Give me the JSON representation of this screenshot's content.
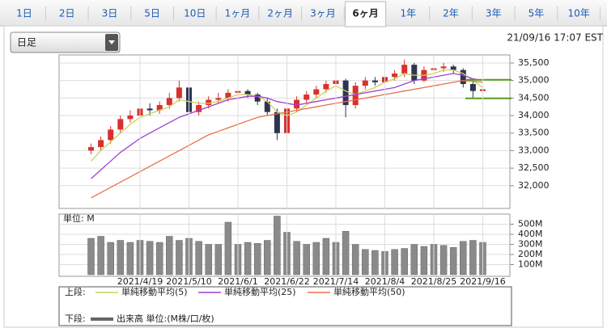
{
  "tabs": [
    "1日",
    "2日",
    "3日",
    "5日",
    "10日",
    "1ヶ月",
    "2ヶ月",
    "3ヶ月",
    "6ヶ月",
    "1年",
    "2年",
    "3年",
    "5年",
    "10年"
  ],
  "active_tab": 8,
  "period_select": "日足",
  "timestamp": "21/09/16 17:07 EST",
  "chart_data": [
    {
      "type": "candlestick",
      "legend_label": "上段:",
      "up_color": "#d8312c",
      "down_color": "#2e3550",
      "ohlc": [
        [
          33000,
          33200,
          32900,
          33100
        ],
        [
          33100,
          33400,
          33000,
          33300
        ],
        [
          33300,
          33700,
          33200,
          33600
        ],
        [
          33600,
          34000,
          33500,
          33900
        ],
        [
          33900,
          34150,
          33800,
          34000
        ],
        [
          34000,
          34300,
          33900,
          34200
        ],
        [
          34200,
          34350,
          34000,
          34150
        ],
        [
          34150,
          34400,
          34050,
          34300
        ],
        [
          34300,
          34650,
          34200,
          34500
        ],
        [
          34500,
          35000,
          34400,
          34800
        ],
        [
          34800,
          34900,
          33950,
          34100
        ],
        [
          34100,
          34400,
          34000,
          34300
        ],
        [
          34300,
          34550,
          34200,
          34450
        ],
        [
          34450,
          34650,
          34350,
          34500
        ],
        [
          34500,
          34750,
          34400,
          34650
        ],
        [
          34650,
          34800,
          34550,
          34700
        ],
        [
          34700,
          34750,
          34500,
          34600
        ],
        [
          34600,
          34650,
          34300,
          34400
        ],
        [
          34400,
          34500,
          34000,
          34100
        ],
        [
          34100,
          34200,
          33300,
          33500
        ],
        [
          33500,
          34300,
          33450,
          34200
        ],
        [
          34200,
          34550,
          34100,
          34450
        ],
        [
          34450,
          34700,
          34350,
          34600
        ],
        [
          34600,
          34850,
          34500,
          34750
        ],
        [
          34750,
          35000,
          34650,
          34900
        ],
        [
          34900,
          35100,
          34800,
          35000
        ],
        [
          35000,
          35050,
          33950,
          34300
        ],
        [
          34300,
          34950,
          34200,
          34850
        ],
        [
          34850,
          35100,
          34750,
          35000
        ],
        [
          35000,
          35100,
          34850,
          34950
        ],
        [
          34950,
          35200,
          34850,
          35100
        ],
        [
          35100,
          35300,
          35000,
          35200
        ],
        [
          35200,
          35600,
          35100,
          35450
        ],
        [
          35450,
          35500,
          34900,
          35000
        ],
        [
          35000,
          35400,
          34950,
          35300
        ],
        [
          35300,
          35450,
          35200,
          35350
        ],
        [
          35350,
          35500,
          35250,
          35400
        ],
        [
          35400,
          35450,
          35200,
          35300
        ],
        [
          35300,
          35350,
          34800,
          34900
        ],
        [
          34900,
          35000,
          34500,
          34700
        ],
        [
          34700,
          34900,
          34550,
          34750
        ]
      ],
      "series": [
        {
          "name": "単純移動平均(5)",
          "color": "#c9d35a",
          "values": [
            32700,
            33000,
            33250,
            33500,
            33750,
            33950,
            34050,
            34150,
            34250,
            34450,
            34400,
            34350,
            34350,
            34400,
            34500,
            34600,
            34600,
            34550,
            34400,
            34100,
            34000,
            34100,
            34300,
            34500,
            34700,
            34850,
            34700,
            34600,
            34700,
            34800,
            34950,
            35050,
            35200,
            35150,
            35150,
            35200,
            35300,
            35300,
            35200,
            35000,
            34800
          ]
        },
        {
          "name": "単純移動平均(25)",
          "color": "#a040d0",
          "values": [
            32200,
            32450,
            32700,
            32950,
            33150,
            33350,
            33500,
            33650,
            33800,
            33950,
            34050,
            34150,
            34250,
            34350,
            34450,
            34500,
            34550,
            34550,
            34500,
            34400,
            34350,
            34300,
            34350,
            34400,
            34450,
            34500,
            34550,
            34600,
            34650,
            34700,
            34750,
            34800,
            34900,
            35000,
            35050,
            35100,
            35150,
            35200,
            35150,
            35050,
            35000
          ]
        },
        {
          "name": "単純移動平均(50)",
          "color": "#e8704a",
          "values": [
            31650,
            31800,
            31950,
            32100,
            32250,
            32400,
            32550,
            32700,
            32850,
            33000,
            33150,
            33300,
            33450,
            33550,
            33650,
            33750,
            33850,
            33950,
            34000,
            34050,
            34100,
            34150,
            34200,
            34250,
            34300,
            34350,
            34400,
            34450,
            34500,
            34550,
            34600,
            34650,
            34700,
            34750,
            34800,
            34850,
            34900,
            34950,
            35000,
            34980,
            34950
          ]
        }
      ],
      "reference_lines": {
        "color": "#5a9a1e",
        "values": [
          35020,
          34490
        ]
      },
      "ylim": [
        31350,
        35730
      ],
      "yticks": [
        {
          "value": 32000,
          "label": "32,000"
        },
        {
          "value": 32500,
          "label": "32,500"
        },
        {
          "value": 33000,
          "label": "33,000"
        },
        {
          "value": 33500,
          "label": "33,500"
        },
        {
          "value": 34000,
          "label": "34,000"
        },
        {
          "value": 34500,
          "label": "34,500"
        },
        {
          "value": 35000,
          "label": "35,000"
        },
        {
          "value": 35500,
          "label": "35,500"
        }
      ],
      "grid": true
    },
    {
      "type": "bar",
      "legend_label": "下段:",
      "unit_label": "単位: M",
      "categories": [
        null,
        null,
        null,
        null,
        null,
        "2021/4/19",
        null,
        null,
        null,
        null,
        "2021/5/10",
        null,
        null,
        null,
        null,
        "2021/6/1",
        null,
        null,
        null,
        null,
        "2021/6/22",
        null,
        null,
        null,
        null,
        "2021/7/14",
        null,
        null,
        null,
        null,
        "2021/8/4",
        null,
        null,
        null,
        null,
        "2021/8/25",
        null,
        null,
        null,
        null,
        "2021/9/16"
      ],
      "series": [
        {
          "name": "出来高 単位:(M株/口/枚)",
          "color": "#8a8a8a",
          "values": [
            360,
            380,
            320,
            340,
            320,
            340,
            330,
            320,
            380,
            340,
            360,
            330,
            300,
            300,
            520,
            300,
            320,
            310,
            340,
            580,
            420,
            330,
            300,
            320,
            360,
            320,
            430,
            300,
            250,
            240,
            230,
            250,
            260,
            300,
            280,
            300,
            290,
            270,
            330,
            340,
            320
          ]
        }
      ],
      "ylim": [
        0,
        600
      ],
      "yticks": [
        {
          "value": 100,
          "label": "100M"
        },
        {
          "value": 200,
          "label": "200M"
        },
        {
          "value": 300,
          "label": "300M"
        },
        {
          "value": 400,
          "label": "400M"
        },
        {
          "value": 500,
          "label": "500M"
        }
      ],
      "grid": true
    }
  ]
}
